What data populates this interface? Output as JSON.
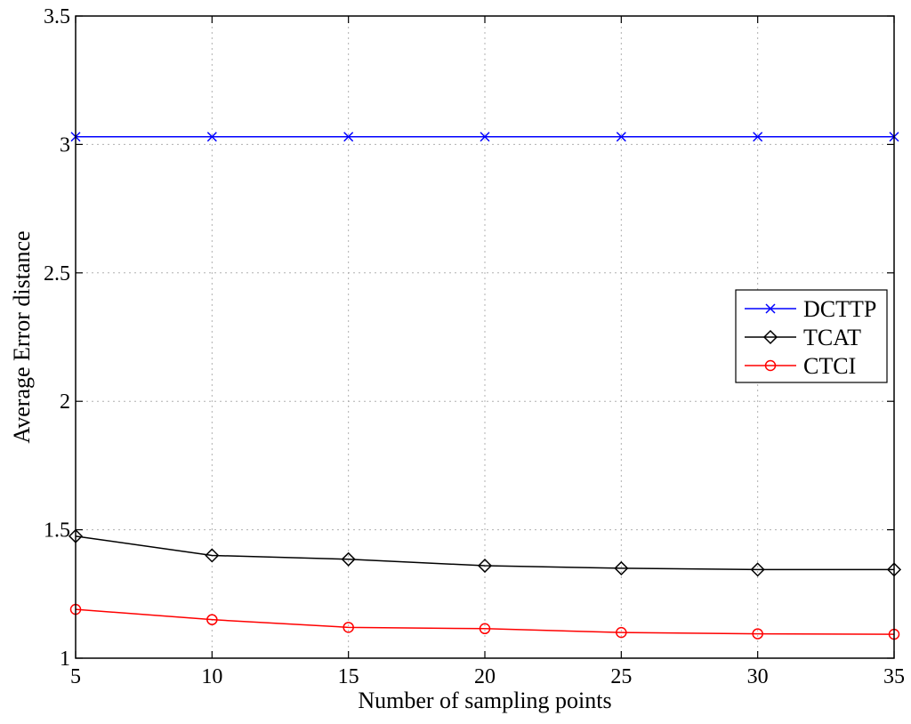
{
  "chart_data": {
    "type": "line",
    "title": "",
    "xlabel": "Number of sampling points",
    "ylabel": "Average Error distance",
    "x": [
      5,
      10,
      15,
      20,
      25,
      30,
      35
    ],
    "xlim": [
      5,
      35
    ],
    "ylim": [
      1,
      3.5
    ],
    "xticks": [
      "5",
      "10",
      "15",
      "20",
      "25",
      "30",
      "35"
    ],
    "yticks": [
      "1",
      "1.5",
      "2",
      "2.5",
      "3",
      "3.5"
    ],
    "grid": true,
    "legend_position": "right",
    "series": [
      {
        "name": "DCTTP",
        "color": "#0000ff",
        "marker": "x-mark",
        "values": [
          3.03,
          3.03,
          3.03,
          3.03,
          3.03,
          3.03,
          3.03
        ]
      },
      {
        "name": "TCAT",
        "color": "#000000",
        "marker": "diamond",
        "values": [
          1.475,
          1.4,
          1.385,
          1.36,
          1.35,
          1.345,
          1.345
        ]
      },
      {
        "name": "CTCI",
        "color": "#ff0000",
        "marker": "circle",
        "values": [
          1.19,
          1.15,
          1.12,
          1.115,
          1.1,
          1.095,
          1.093
        ]
      }
    ]
  }
}
